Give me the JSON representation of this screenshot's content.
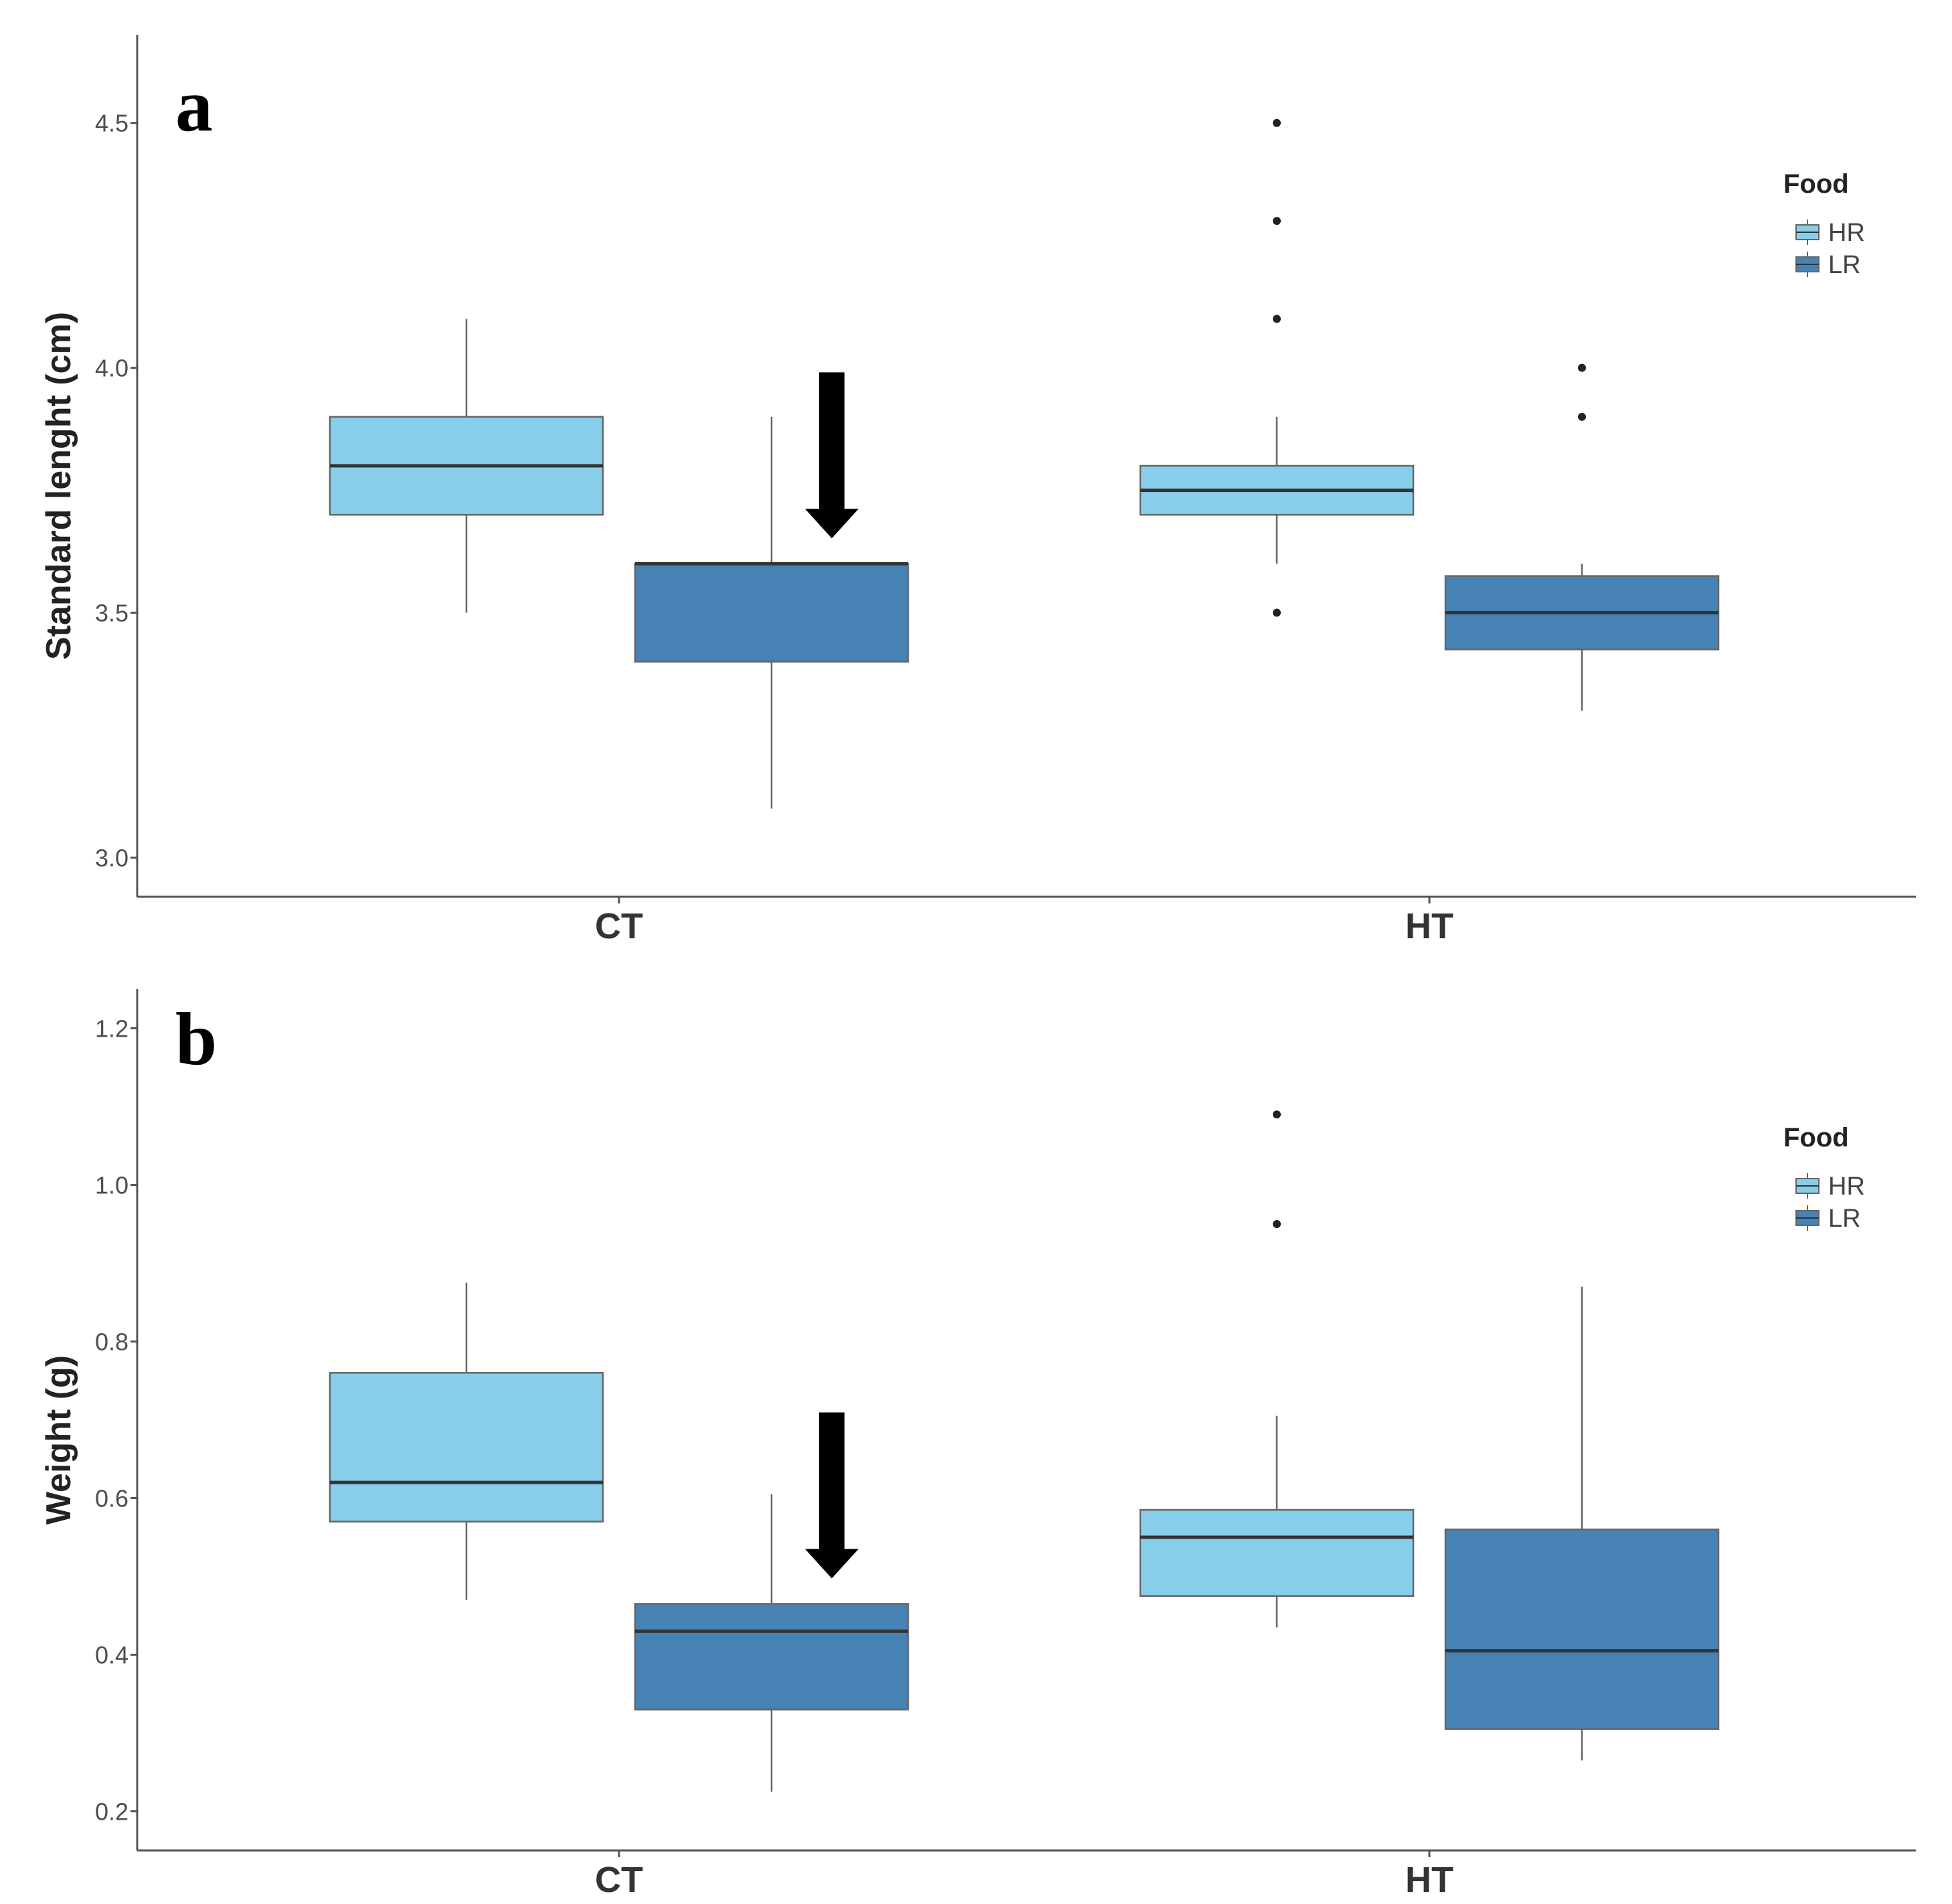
{
  "colors": {
    "HR": "#87CEEB",
    "LR": "#4682B4",
    "axis": "#555555",
    "whisker": "#666666",
    "median": "#333333",
    "arrow": "#000000"
  },
  "legend": {
    "title": "Food",
    "items": [
      "HR",
      "LR"
    ]
  },
  "chart_data": [
    {
      "type": "boxplot",
      "panel_label": "a",
      "title": "",
      "xlabel": "",
      "ylabel": "Standard lenght (cm)",
      "categories": [
        "CT",
        "HT"
      ],
      "groups": [
        "HR",
        "LR"
      ],
      "ylim": [
        2.92,
        4.68
      ],
      "yticks": [
        3.0,
        3.5,
        4.0,
        4.5
      ],
      "ytick_labels": [
        "3.0",
        "3.5",
        "4.0",
        "4.5"
      ],
      "grid": false,
      "legend_position": "right",
      "boxes": [
        {
          "category": "CT",
          "group": "HR",
          "whisker_low": 3.5,
          "q1": 3.7,
          "median": 3.8,
          "q3": 3.9,
          "whisker_high": 4.1,
          "outliers": []
        },
        {
          "category": "CT",
          "group": "LR",
          "whisker_low": 3.1,
          "q1": 3.4,
          "median": 3.6,
          "q3": 3.6,
          "whisker_high": 3.9,
          "outliers": []
        },
        {
          "category": "HT",
          "group": "HR",
          "whisker_low": 3.6,
          "q1": 3.7,
          "median": 3.75,
          "q3": 3.8,
          "whisker_high": 3.9,
          "outliers": [
            4.5,
            4.3,
            4.1,
            3.5
          ]
        },
        {
          "category": "HT",
          "group": "LR",
          "whisker_low": 3.3,
          "q1": 3.425,
          "median": 3.5,
          "q3": 3.575,
          "whisker_high": 3.6,
          "outliers": [
            4.0,
            3.9
          ]
        }
      ],
      "annotations": [
        {
          "type": "arrow",
          "points_to": "CT-LR",
          "direction": "down"
        }
      ]
    },
    {
      "type": "boxplot",
      "panel_label": "b",
      "title": "",
      "xlabel": "",
      "ylabel": "Weight (g)",
      "categories": [
        "CT",
        "HT"
      ],
      "groups": [
        "HR",
        "LR"
      ],
      "ylim": [
        0.15,
        1.25
      ],
      "yticks": [
        0.2,
        0.4,
        0.6,
        0.8,
        1.0,
        1.2
      ],
      "ytick_labels": [
        "0.2",
        "0.4",
        "0.6",
        "0.8",
        "1.0",
        "1.2"
      ],
      "grid": false,
      "legend_position": "right",
      "boxes": [
        {
          "category": "CT",
          "group": "HR",
          "whisker_low": 0.47,
          "q1": 0.57,
          "median": 0.62,
          "q3": 0.76,
          "whisker_high": 0.875,
          "outliers": []
        },
        {
          "category": "CT",
          "group": "LR",
          "whisker_low": 0.225,
          "q1": 0.33,
          "median": 0.43,
          "q3": 0.465,
          "whisker_high": 0.605,
          "outliers": []
        },
        {
          "category": "HT",
          "group": "HR",
          "whisker_low": 0.435,
          "q1": 0.475,
          "median": 0.55,
          "q3": 0.585,
          "whisker_high": 0.705,
          "outliers": [
            1.09,
            0.95
          ]
        },
        {
          "category": "HT",
          "group": "LR",
          "whisker_low": 0.265,
          "q1": 0.305,
          "median": 0.405,
          "q3": 0.56,
          "whisker_high": 0.87,
          "outliers": []
        }
      ],
      "annotations": [
        {
          "type": "arrow",
          "points_to": "CT-LR",
          "direction": "down"
        }
      ]
    }
  ]
}
